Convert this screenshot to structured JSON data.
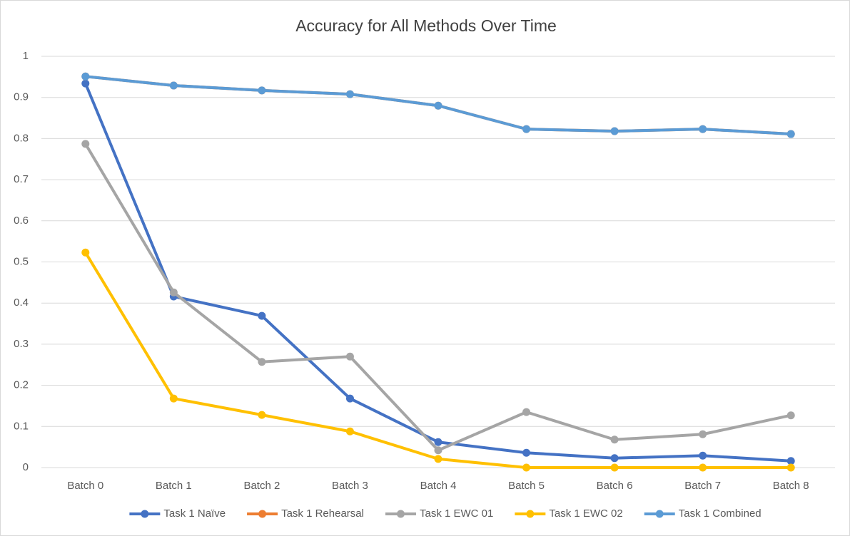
{
  "chart_data": {
    "type": "line",
    "title": "Accuracy for All Methods Over Time",
    "categories": [
      "Batch 0",
      "Batch 1",
      "Batch 2",
      "Batch 3",
      "Batch 4",
      "Batch 5",
      "Batch 6",
      "Batch 7",
      "Batch 8"
    ],
    "series": [
      {
        "name": "Task 1 Naïve",
        "color": "#4472c4",
        "values": [
          0.934,
          0.416,
          0.369,
          0.168,
          0.062,
          0.036,
          0.023,
          0.029,
          0.016
        ]
      },
      {
        "name": "Task 1 Rehearsal",
        "color": "#ed7d31",
        "values": [
          0.951,
          0.929,
          0.917,
          0.908,
          0.88,
          0.823,
          0.818,
          0.823,
          0.811
        ]
      },
      {
        "name": "Task 1 EWC 01",
        "color": "#a5a5a5",
        "values": [
          0.787,
          0.426,
          0.257,
          0.27,
          0.042,
          0.135,
          0.068,
          0.081,
          0.127
        ]
      },
      {
        "name": "Task 1 EWC 02",
        "color": "#ffc000",
        "values": [
          0.523,
          0.168,
          0.128,
          0.088,
          0.021,
          0,
          0,
          0,
          0
        ]
      },
      {
        "name": "Task 1 Combined",
        "color": "#5b9bd5",
        "values": [
          0.951,
          0.929,
          0.917,
          0.908,
          0.88,
          0.823,
          0.818,
          0.823,
          0.811
        ]
      }
    ],
    "ylim": [
      0,
      1
    ],
    "yticks": [
      0,
      0.1,
      0.2,
      0.3,
      0.4,
      0.5,
      0.6,
      0.7,
      0.8,
      0.9,
      1
    ],
    "grid": true,
    "legend": "bottom"
  }
}
